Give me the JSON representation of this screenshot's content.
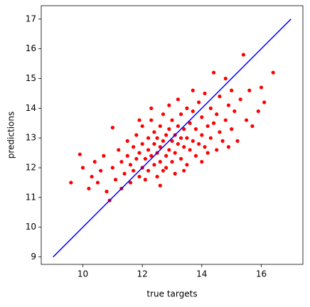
{
  "chart_data": {
    "type": "scatter",
    "xlabel": "true targets",
    "ylabel": "predictions",
    "xlim": [
      8.6,
      17.4
    ],
    "ylim": [
      8.75,
      17.45
    ],
    "xticks": [
      10,
      12,
      14,
      16
    ],
    "yticks": [
      9,
      10,
      11,
      12,
      13,
      14,
      15,
      16,
      17
    ],
    "series": [
      {
        "type": "scatter",
        "color": "#ff0000",
        "x": [
          9.6,
          9.9,
          10.0,
          10.2,
          10.3,
          10.4,
          10.5,
          10.6,
          10.7,
          10.8,
          10.9,
          11.0,
          11.0,
          11.1,
          11.2,
          11.3,
          11.3,
          11.4,
          11.5,
          11.5,
          11.6,
          11.6,
          11.7,
          11.7,
          11.8,
          11.8,
          11.9,
          11.9,
          12.0,
          12.0,
          12.0,
          12.1,
          12.1,
          12.2,
          12.2,
          12.2,
          12.3,
          12.3,
          12.4,
          12.4,
          12.4,
          12.5,
          12.5,
          12.5,
          12.6,
          12.6,
          12.6,
          12.7,
          12.7,
          12.7,
          12.8,
          12.8,
          12.8,
          12.9,
          12.9,
          12.9,
          13.0,
          13.0,
          13.0,
          13.1,
          13.1,
          13.1,
          13.2,
          13.2,
          13.2,
          13.3,
          13.3,
          13.3,
          13.4,
          13.4,
          13.5,
          13.5,
          13.5,
          13.6,
          13.6,
          13.7,
          13.7,
          13.8,
          13.8,
          13.9,
          13.9,
          14.0,
          14.0,
          14.0,
          14.1,
          14.1,
          14.2,
          14.2,
          14.3,
          14.3,
          14.4,
          14.4,
          14.5,
          14.5,
          14.6,
          14.6,
          14.7,
          14.8,
          14.9,
          14.9,
          15.0,
          15.0,
          15.1,
          15.2,
          15.3,
          15.4,
          15.5,
          15.6,
          15.7,
          15.9,
          16.0,
          16.1,
          16.4,
          12.6,
          13.4,
          11.9,
          12.3,
          13.7,
          14.8
        ],
        "y": [
          11.5,
          12.45,
          12.0,
          11.3,
          11.7,
          12.2,
          11.5,
          11.9,
          12.4,
          11.2,
          10.9,
          13.35,
          12.0,
          11.6,
          12.6,
          11.3,
          12.2,
          11.8,
          12.4,
          12.9,
          11.5,
          12.1,
          12.7,
          11.9,
          12.3,
          13.1,
          11.7,
          12.5,
          12.0,
          12.8,
          13.4,
          11.6,
          12.3,
          12.6,
          13.0,
          11.9,
          12.4,
          13.6,
          12.1,
          12.8,
          13.2,
          11.7,
          12.5,
          13.0,
          12.2,
          12.7,
          13.4,
          11.9,
          12.9,
          13.8,
          12.4,
          13.1,
          12.0,
          12.6,
          13.3,
          14.1,
          12.2,
          12.9,
          13.6,
          12.5,
          13.1,
          11.8,
          12.8,
          13.4,
          14.3,
          12.3,
          13.0,
          13.8,
          12.7,
          13.3,
          12.1,
          13.0,
          14.0,
          12.6,
          13.5,
          12.9,
          13.9,
          12.4,
          13.3,
          12.8,
          14.2,
          13.1,
          12.2,
          13.7,
          12.7,
          14.5,
          13.4,
          12.5,
          13.0,
          14.0,
          15.2,
          13.5,
          12.6,
          13.8,
          13.2,
          14.4,
          12.9,
          13.6,
          14.1,
          12.7,
          13.3,
          14.6,
          13.9,
          12.9,
          14.3,
          15.8,
          13.6,
          14.6,
          13.4,
          13.9,
          14.7,
          14.2,
          15.2,
          11.4,
          11.9,
          13.6,
          14.0,
          14.6,
          15.0
        ]
      },
      {
        "type": "line",
        "color": "#0000ff",
        "x": [
          9,
          17
        ],
        "y": [
          9,
          17
        ]
      }
    ]
  }
}
